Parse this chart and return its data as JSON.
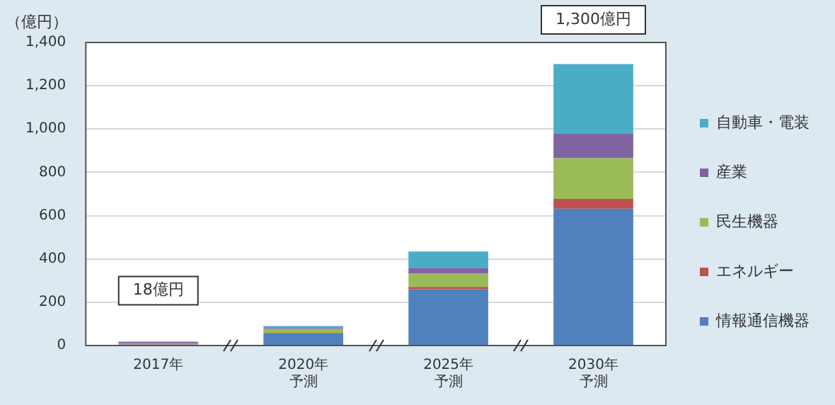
{
  "chart_data": {
    "type": "bar",
    "ylabel": "（億円）",
    "stacked": true,
    "categories": [
      "2017年",
      "2020年予測",
      "2025年予測",
      "2030年予測"
    ],
    "series": [
      {
        "name": "情報通信機器",
        "color": "#4f81bd",
        "values": [
          4,
          56,
          260,
          632
        ]
      },
      {
        "name": "エネルギー",
        "color": "#c0504d",
        "values": [
          2,
          2,
          11,
          45
        ]
      },
      {
        "name": "民生機器",
        "color": "#9bbb59",
        "values": [
          2,
          18,
          61,
          188
        ]
      },
      {
        "name": "産業",
        "color": "#8064a2",
        "values": [
          8,
          5,
          27,
          113
        ]
      },
      {
        "name": "自動車・電装",
        "color": "#4bacc6",
        "values": [
          2,
          9,
          75,
          322
        ]
      }
    ],
    "ylim": [
      0,
      1400
    ],
    "yticks": [
      0,
      200,
      400,
      600,
      800,
      {
        "value": 1000,
        "label": "1,000"
      },
      {
        "value": 1200,
        "label": "1,200"
      },
      {
        "value": 1400,
        "label": "1,400"
      }
    ],
    "grid": "y",
    "legend": "right",
    "annotations": [
      {
        "text": "18億円",
        "x": "2017年",
        "y": 18
      },
      {
        "text": "1,300億円",
        "x": "2030年予測",
        "y": 1300
      }
    ]
  }
}
